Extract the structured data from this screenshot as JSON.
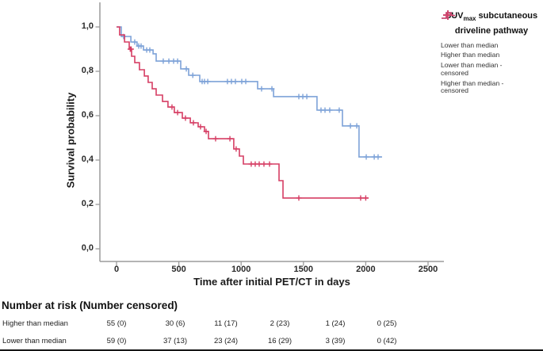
{
  "figure": {
    "y_axis": {
      "title": "Survival probability",
      "tick_labels": [
        "1,0",
        "0,8",
        "0,6",
        "0,4",
        "0,2",
        "0,0"
      ],
      "tick_values": [
        1.0,
        0.8,
        0.6,
        0.4,
        0.2,
        0.0
      ]
    },
    "x_axis": {
      "title": "Time after initial PET/CT in days",
      "tick_labels": [
        "0",
        "500",
        "1000",
        "1500",
        "2000",
        "2500"
      ],
      "tick_values": [
        0,
        500,
        1000,
        1500,
        2000,
        2500
      ]
    }
  },
  "legend": {
    "title_prefix": "SUV",
    "title_subscript": "max",
    "title_suffix": " subcutaneous",
    "title_line2": "driveline pathway",
    "items": [
      {
        "label_lines": [
          "Lower than median"
        ],
        "icon": "step",
        "color": "#7da2d8"
      },
      {
        "label_lines": [
          "Higher than median"
        ],
        "icon": "step",
        "color": "#d63e64"
      },
      {
        "label_lines": [
          "Lower than median -",
          "censored"
        ],
        "icon": "plus",
        "color": "#7da2d8"
      },
      {
        "label_lines": [
          "Higher than median -",
          "censored"
        ],
        "icon": "plus",
        "color": "#d63e64"
      }
    ]
  },
  "risk_table": {
    "header": "Number at risk (Number censored)",
    "rows": [
      {
        "label": "Higher than median",
        "values": [
          "55 (0)",
          "30 (6)",
          "11 (17)",
          "2 (23)",
          "1 (24)",
          "0 (25)"
        ]
      },
      {
        "label": "Lower than median",
        "values": [
          "59 (0)",
          "37 (13)",
          "23 (24)",
          "16 (29)",
          "3 (39)",
          "0 (42)"
        ]
      }
    ]
  },
  "chart_data": {
    "type": "line",
    "subtype": "kaplan-meier-step",
    "title": "",
    "xlabel": "Time after initial PET/CT in days",
    "ylabel": "Survival probability",
    "xlim": [
      -130,
      2630
    ],
    "ylim": [
      -0.06,
      1.1
    ],
    "xticks": [
      0,
      500,
      1000,
      1500,
      2000,
      2500
    ],
    "yticks": [
      0.0,
      0.2,
      0.4,
      0.6,
      0.8,
      1.0
    ],
    "grid": false,
    "legend_position": "right",
    "axis_color": "#9b9b9b",
    "series": [
      {
        "name": "Lower than median",
        "color": "#7da2d8",
        "n_at_risk": [
          59,
          37,
          23,
          16,
          3,
          0
        ],
        "n_censored_cum": [
          0,
          13,
          24,
          29,
          39,
          42
        ],
        "start": [
          0,
          1.0
        ],
        "steps": [
          [
            38,
            0.957
          ],
          [
            115,
            0.932
          ],
          [
            165,
            0.914
          ],
          [
            216,
            0.896
          ],
          [
            293,
            0.879
          ],
          [
            318,
            0.846
          ],
          [
            515,
            0.811
          ],
          [
            579,
            0.782
          ],
          [
            668,
            0.754
          ],
          [
            1132,
            0.721
          ],
          [
            1260,
            0.686
          ],
          [
            1609,
            0.625
          ],
          [
            1813,
            0.554
          ],
          [
            1946,
            0.414
          ]
        ],
        "end_day": 2131,
        "censored_marks": [
          [
            57,
            0.957
          ],
          [
            146,
            0.932
          ],
          [
            178,
            0.914
          ],
          [
            197,
            0.914
          ],
          [
            242,
            0.896
          ],
          [
            267,
            0.896
          ],
          [
            375,
            0.846
          ],
          [
            420,
            0.846
          ],
          [
            458,
            0.846
          ],
          [
            490,
            0.846
          ],
          [
            560,
            0.811
          ],
          [
            612,
            0.782
          ],
          [
            687,
            0.754
          ],
          [
            706,
            0.754
          ],
          [
            732,
            0.754
          ],
          [
            890,
            0.754
          ],
          [
            922,
            0.754
          ],
          [
            954,
            0.754
          ],
          [
            1005,
            0.754
          ],
          [
            1037,
            0.754
          ],
          [
            1164,
            0.721
          ],
          [
            1247,
            0.721
          ],
          [
            1463,
            0.686
          ],
          [
            1495,
            0.686
          ],
          [
            1527,
            0.686
          ],
          [
            1641,
            0.625
          ],
          [
            1673,
            0.625
          ],
          [
            1711,
            0.625
          ],
          [
            1787,
            0.625
          ],
          [
            1877,
            0.554
          ],
          [
            1928,
            0.554
          ],
          [
            2004,
            0.414
          ],
          [
            2068,
            0.414
          ],
          [
            2099,
            0.414
          ]
        ]
      },
      {
        "name": "Higher than median",
        "color": "#d63e64",
        "n_at_risk": [
          55,
          30,
          11,
          2,
          1,
          0
        ],
        "n_censored_cum": [
          0,
          6,
          17,
          23,
          24,
          25
        ],
        "start": [
          0,
          1.0
        ],
        "steps": [
          [
            25,
            0.964
          ],
          [
            64,
            0.932
          ],
          [
            102,
            0.9
          ],
          [
            121,
            0.868
          ],
          [
            146,
            0.839
          ],
          [
            184,
            0.807
          ],
          [
            223,
            0.779
          ],
          [
            254,
            0.75
          ],
          [
            286,
            0.721
          ],
          [
            318,
            0.693
          ],
          [
            369,
            0.664
          ],
          [
            413,
            0.639
          ],
          [
            464,
            0.614
          ],
          [
            528,
            0.589
          ],
          [
            592,
            0.568
          ],
          [
            655,
            0.55
          ],
          [
            706,
            0.529
          ],
          [
            738,
            0.496
          ],
          [
            941,
            0.45
          ],
          [
            986,
            0.418
          ],
          [
            1018,
            0.382
          ],
          [
            1304,
            0.307
          ],
          [
            1336,
            0.229
          ]
        ],
        "end_day": 2023,
        "censored_marks": [
          [
            110,
            0.9
          ],
          [
            118,
            0.9
          ],
          [
            445,
            0.639
          ],
          [
            490,
            0.614
          ],
          [
            553,
            0.589
          ],
          [
            617,
            0.568
          ],
          [
            674,
            0.55
          ],
          [
            719,
            0.529
          ],
          [
            795,
            0.496
          ],
          [
            910,
            0.496
          ],
          [
            960,
            0.45
          ],
          [
            1081,
            0.382
          ],
          [
            1113,
            0.382
          ],
          [
            1145,
            0.382
          ],
          [
            1183,
            0.382
          ],
          [
            1228,
            0.382
          ],
          [
            1463,
            0.229
          ],
          [
            1959,
            0.229
          ],
          [
            2000,
            0.229
          ]
        ]
      }
    ]
  }
}
